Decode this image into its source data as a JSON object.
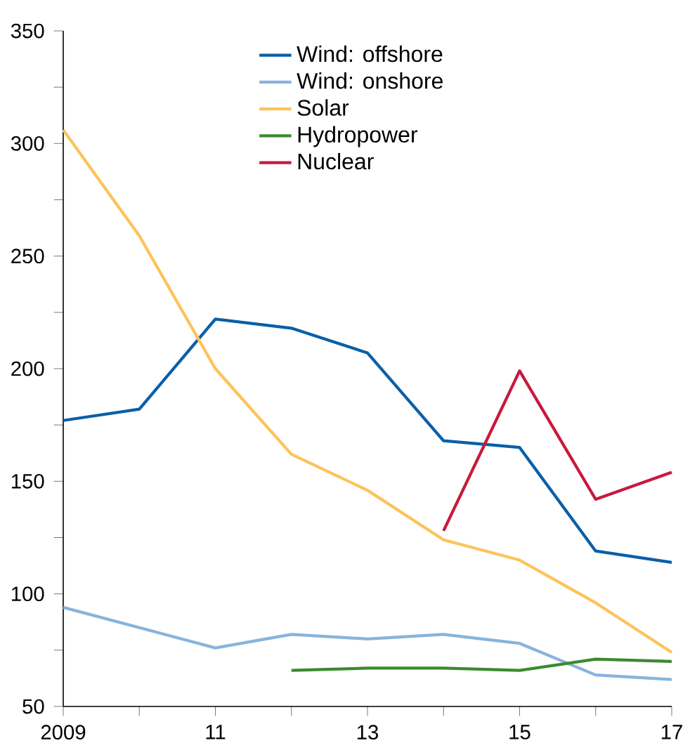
{
  "chart_data": {
    "type": "line",
    "x": [
      2009,
      2010,
      2011,
      2012,
      2013,
      2014,
      2015,
      2016,
      2017
    ],
    "xlim": [
      2009,
      2017
    ],
    "xticks": [
      {
        "value": 2009,
        "label": "2009"
      },
      {
        "value": 2010,
        "label": null
      },
      {
        "value": 2011,
        "label": "11"
      },
      {
        "value": 2012,
        "label": null
      },
      {
        "value": 2013,
        "label": "13"
      },
      {
        "value": 2014,
        "label": null
      },
      {
        "value": 2015,
        "label": "15"
      },
      {
        "value": 2016,
        "label": null
      },
      {
        "value": 2017,
        "label": "17"
      }
    ],
    "ylim": [
      50,
      350
    ],
    "yticks": [
      50,
      {
        "value": 75,
        "label": null
      },
      100,
      {
        "value": 125,
        "label": null
      },
      150,
      {
        "value": 175,
        "label": null
      },
      200,
      {
        "value": 225,
        "label": null
      },
      250,
      {
        "value": 275,
        "label": null
      },
      300,
      {
        "value": 325,
        "label": null
      },
      350
    ],
    "grid": false,
    "legend": "top",
    "marker": "none",
    "line_style": "solid",
    "series": [
      {
        "name": "Wind: offshore",
        "color": "#0a5fa8",
        "values": [
          177,
          182,
          222,
          218,
          207,
          168,
          165,
          119,
          114
        ]
      },
      {
        "name": "Wind: onshore",
        "color": "#86b4dc",
        "values": [
          94,
          85,
          76,
          82,
          80,
          82,
          78,
          64,
          62
        ]
      },
      {
        "name": "Solar",
        "color": "#fdc35a",
        "values": [
          306,
          259,
          200,
          162,
          146,
          124,
          115,
          96,
          74
        ]
      },
      {
        "name": "Hydropower",
        "color": "#3b8a2e",
        "values": [
          null,
          null,
          null,
          66,
          67,
          67,
          66,
          71,
          70
        ]
      },
      {
        "name": "Nuclear",
        "color": "#c8193c",
        "values": [
          null,
          null,
          null,
          null,
          null,
          128,
          199,
          142,
          154
        ]
      }
    ]
  }
}
